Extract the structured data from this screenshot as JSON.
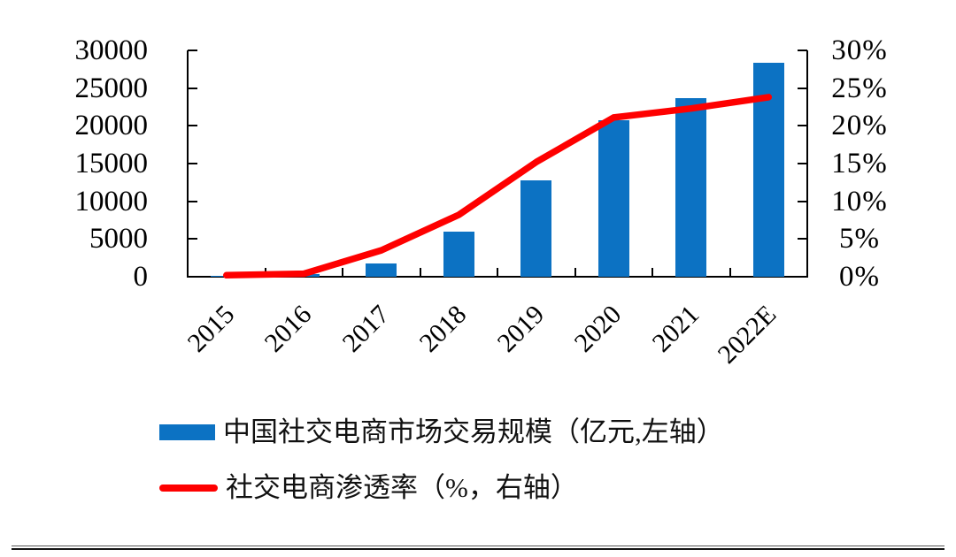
{
  "chart_data": {
    "type": "bar",
    "subtype": "combo-bar-line-dual-axis",
    "categories": [
      "2015",
      "2016",
      "2017",
      "2018",
      "2019",
      "2020",
      "2021",
      "2022E"
    ],
    "series": [
      {
        "name": "中国社交电商市场交易规模（亿元,左轴）",
        "type": "bar",
        "axis": "left",
        "color": "#0c72c3",
        "values": [
          100,
          300,
          1800,
          6000,
          12800,
          20700,
          23700,
          28400
        ]
      },
      {
        "name": "社交电商渗透率（%，右轴）",
        "type": "line",
        "axis": "right",
        "color": "#fe0000",
        "values": [
          0.2,
          0.4,
          3.5,
          8.2,
          15.2,
          21.1,
          22.3,
          23.8
        ]
      }
    ],
    "title": "",
    "xlabel": "",
    "ylabel_left": "亿元",
    "ylabel_right": "%",
    "left_axis": {
      "min": 0,
      "max": 30000,
      "step": 5000,
      "tick_labels": [
        "0",
        "5000",
        "10000",
        "15000",
        "20000",
        "25000",
        "30000"
      ]
    },
    "right_axis": {
      "min": 0,
      "max": 30,
      "step": 5,
      "tick_labels": [
        "0%",
        "5%",
        "10%",
        "15%",
        "20%",
        "25%",
        "30%"
      ]
    },
    "grid": false,
    "legend_position": "bottom-left",
    "x_tick_label_rotation_deg": -45
  },
  "legend": {
    "items": [
      {
        "swatch": "bar",
        "label": "中国社交电商市场交易规模（亿元,左轴）"
      },
      {
        "swatch": "line",
        "label": "社交电商渗透率（%，右轴）"
      }
    ]
  },
  "colors": {
    "bar": "#0c72c3",
    "line": "#fe0000",
    "axis": "#000000",
    "background": "#ffffff"
  }
}
